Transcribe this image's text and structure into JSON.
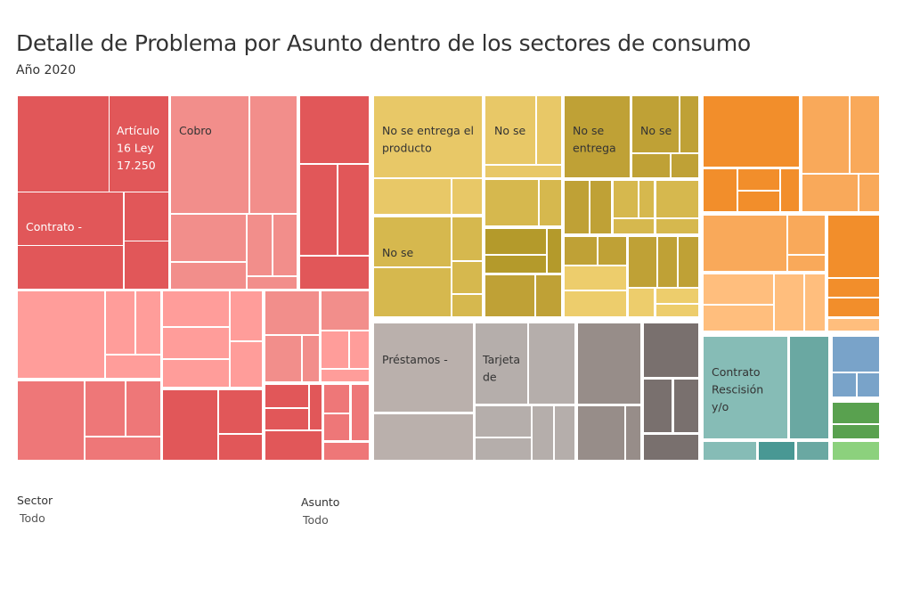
{
  "header": {
    "title": "Detalle de Problema por Asunto dentro de los sectores de consumo",
    "subtitle": "Año 2020"
  },
  "filters": [
    {
      "name": "sector",
      "label": "Sector",
      "value": "Todo"
    },
    {
      "name": "asunto",
      "label": "Asunto",
      "value": "Todo"
    }
  ],
  "chart_data": {
    "type": "treemap",
    "title": "Detalle de Problema por Asunto dentro de los sectores de consumo",
    "subtitle": "Año 2020",
    "color_by": "Sector",
    "size_by": "Cantidad de reclamos (relativa, estimada del área)",
    "labels": [
      {
        "group": "red",
        "lines": [
          "Artículo",
          "16 Ley",
          "17.250"
        ],
        "text_color": "#ffffff"
      },
      {
        "group": "red",
        "lines": [
          "Cobro"
        ],
        "text_color": "#333333"
      },
      {
        "group": "red",
        "lines": [
          "Contrato -"
        ],
        "text_color": "#ffffff"
      },
      {
        "group": "yellow",
        "lines": [
          "No se entrega el",
          "producto"
        ],
        "text_color": "#333333"
      },
      {
        "group": "yellow",
        "lines": [
          "No se"
        ],
        "text_color": "#333333"
      },
      {
        "group": "yellow",
        "lines": [
          "No se",
          "entrega"
        ],
        "text_color": "#333333"
      },
      {
        "group": "yellow",
        "lines": [
          "No se"
        ],
        "text_color": "#333333"
      },
      {
        "group": "yellow",
        "lines": [
          "No se"
        ],
        "text_color": "#333333"
      },
      {
        "group": "gray",
        "lines": [
          "Préstamos -"
        ],
        "text_color": "#333333"
      },
      {
        "group": "gray",
        "lines": [
          "Tarjeta",
          "de"
        ],
        "text_color": "#333333"
      },
      {
        "group": "teal",
        "lines": [
          "Contrato",
          "Rescisión",
          "y/o"
        ],
        "text_color": "#333333"
      }
    ],
    "sector_colors": {
      "red": [
        "#e15759",
        "#f28e8b",
        "#ff9d9a",
        "#ee7778"
      ],
      "yellow": [
        "#e8c867",
        "#d6b84e",
        "#bfa136",
        "#b49a2b",
        "#edcd6c"
      ],
      "gray": [
        "#bab0ac",
        "#b5aeab",
        "#978d89",
        "#79706e"
      ],
      "orange": [
        "#f28e2b",
        "#f9a95a",
        "#ffbe7d"
      ],
      "teal": [
        "#86bcb6",
        "#6aa8a2",
        "#499894"
      ],
      "blue": [
        "#79a3c9"
      ],
      "green": [
        "#59a14f",
        "#8cd17d"
      ]
    },
    "areas": {
      "red": 0.435,
      "yellow": 0.19,
      "gray": 0.19,
      "orange": 0.093,
      "teal": 0.06,
      "blue": 0.017,
      "green": 0.015
    }
  }
}
